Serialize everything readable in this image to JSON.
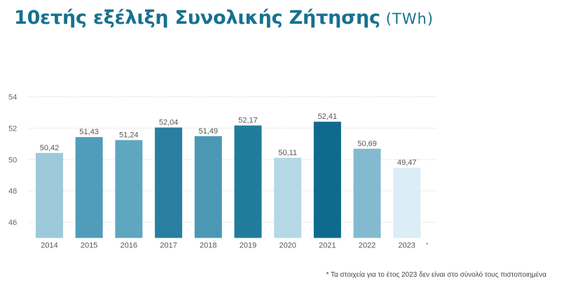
{
  "title": "10ετής εξέλιξη Συνολικής Ζήτησης",
  "unit": "(TWh)",
  "footnote": "* Τα στοιχεία για το έτος 2023 δεν είναι στο σύνολό τους πιστοποιημένα",
  "chart_data": {
    "type": "bar",
    "categories": [
      "2014",
      "2015",
      "2016",
      "2017",
      "2018",
      "2019",
      "2020",
      "2021",
      "2022",
      "2023"
    ],
    "category_suffixes": [
      "",
      "",
      "",
      "",
      "",
      "",
      "",
      "",
      "",
      "*"
    ],
    "values": [
      50.42,
      51.43,
      51.24,
      52.04,
      51.49,
      52.17,
      50.11,
      52.41,
      50.69,
      49.47
    ],
    "data_labels": [
      "50,42",
      "51,43",
      "51,24",
      "52,04",
      "51,49",
      "52,17",
      "50,11",
      "52,41",
      "50,69",
      "49,47"
    ],
    "bar_colors": [
      "#9dc9da",
      "#519db9",
      "#5fa6c1",
      "#287f9f",
      "#4b98b4",
      "#217c9c",
      "#b4d8e6",
      "#0f6b8d",
      "#84bad0",
      "#dbedf6"
    ],
    "yticks": [
      46,
      48,
      50,
      52,
      54
    ],
    "ylim": [
      45,
      54
    ],
    "grid": true
  }
}
